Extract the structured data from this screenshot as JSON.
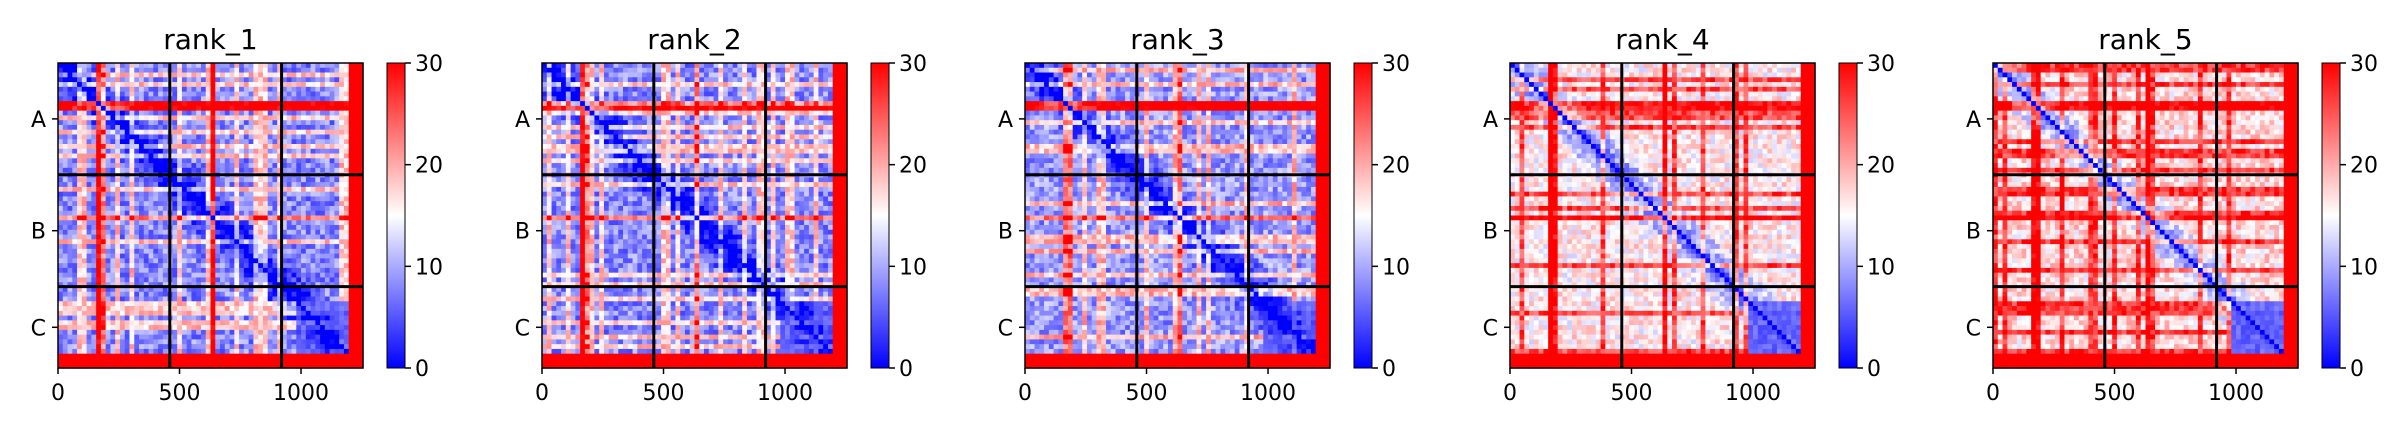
{
  "chart_data": [
    {
      "type": "heatmap",
      "title": "rank_1",
      "chains": [
        "A",
        "B",
        "C"
      ],
      "chain_boundaries": [
        0,
        460,
        920,
        1255
      ],
      "x_ticks": [
        0,
        500,
        1000
      ],
      "xlim": [
        0,
        1255
      ],
      "colorbar": {
        "min": 0,
        "max": 30,
        "ticks": [
          0,
          10,
          20,
          30
        ],
        "colors": [
          "#0000ff",
          "#ffffff",
          "#ff0000"
        ]
      },
      "band_positions": [
        180,
        640
      ],
      "high_error_region_start": 1200,
      "background_level": 8
    },
    {
      "type": "heatmap",
      "title": "rank_2",
      "chains": [
        "A",
        "B",
        "C"
      ],
      "chain_boundaries": [
        0,
        460,
        920,
        1255
      ],
      "x_ticks": [
        0,
        500,
        1000
      ],
      "xlim": [
        0,
        1255
      ],
      "colorbar": {
        "min": 0,
        "max": 30,
        "ticks": [
          0,
          10,
          20,
          30
        ],
        "colors": [
          "#0000ff",
          "#ffffff",
          "#ff0000"
        ]
      },
      "band_positions": [
        180,
        640
      ],
      "high_error_region_start": 1200,
      "background_level": 8
    },
    {
      "type": "heatmap",
      "title": "rank_3",
      "chains": [
        "A",
        "B",
        "C"
      ],
      "chain_boundaries": [
        0,
        460,
        920,
        1255
      ],
      "x_ticks": [
        0,
        500,
        1000
      ],
      "xlim": [
        0,
        1255
      ],
      "colorbar": {
        "min": 0,
        "max": 30,
        "ticks": [
          0,
          10,
          20,
          30
        ],
        "colors": [
          "#0000ff",
          "#ffffff",
          "#ff0000"
        ]
      },
      "band_positions": [
        180,
        640
      ],
      "high_error_region_start": 1200,
      "background_level": 9
    },
    {
      "type": "heatmap",
      "title": "rank_4",
      "chains": [
        "A",
        "B",
        "C"
      ],
      "chain_boundaries": [
        0,
        460,
        920,
        1255
      ],
      "x_ticks": [
        0,
        500,
        1000
      ],
      "xlim": [
        0,
        1255
      ],
      "colorbar": {
        "min": 0,
        "max": 30,
        "ticks": [
          0,
          10,
          20,
          30
        ],
        "colors": [
          "#0000ff",
          "#ffffff",
          "#ff0000"
        ]
      },
      "band_positions": [
        180,
        640
      ],
      "high_error_region_start": 1200,
      "background_level": 16
    },
    {
      "type": "heatmap",
      "title": "rank_5",
      "chains": [
        "A",
        "B",
        "C"
      ],
      "chain_boundaries": [
        0,
        460,
        920,
        1255
      ],
      "x_ticks": [
        0,
        500,
        1000
      ],
      "xlim": [
        0,
        1255
      ],
      "colorbar": {
        "min": 0,
        "max": 30,
        "ticks": [
          0,
          10,
          20,
          30
        ],
        "colors": [
          "#0000ff",
          "#ffffff",
          "#ff0000"
        ]
      },
      "band_positions": [
        180,
        640
      ],
      "high_error_region_start": 1200,
      "background_level": 17
    }
  ]
}
